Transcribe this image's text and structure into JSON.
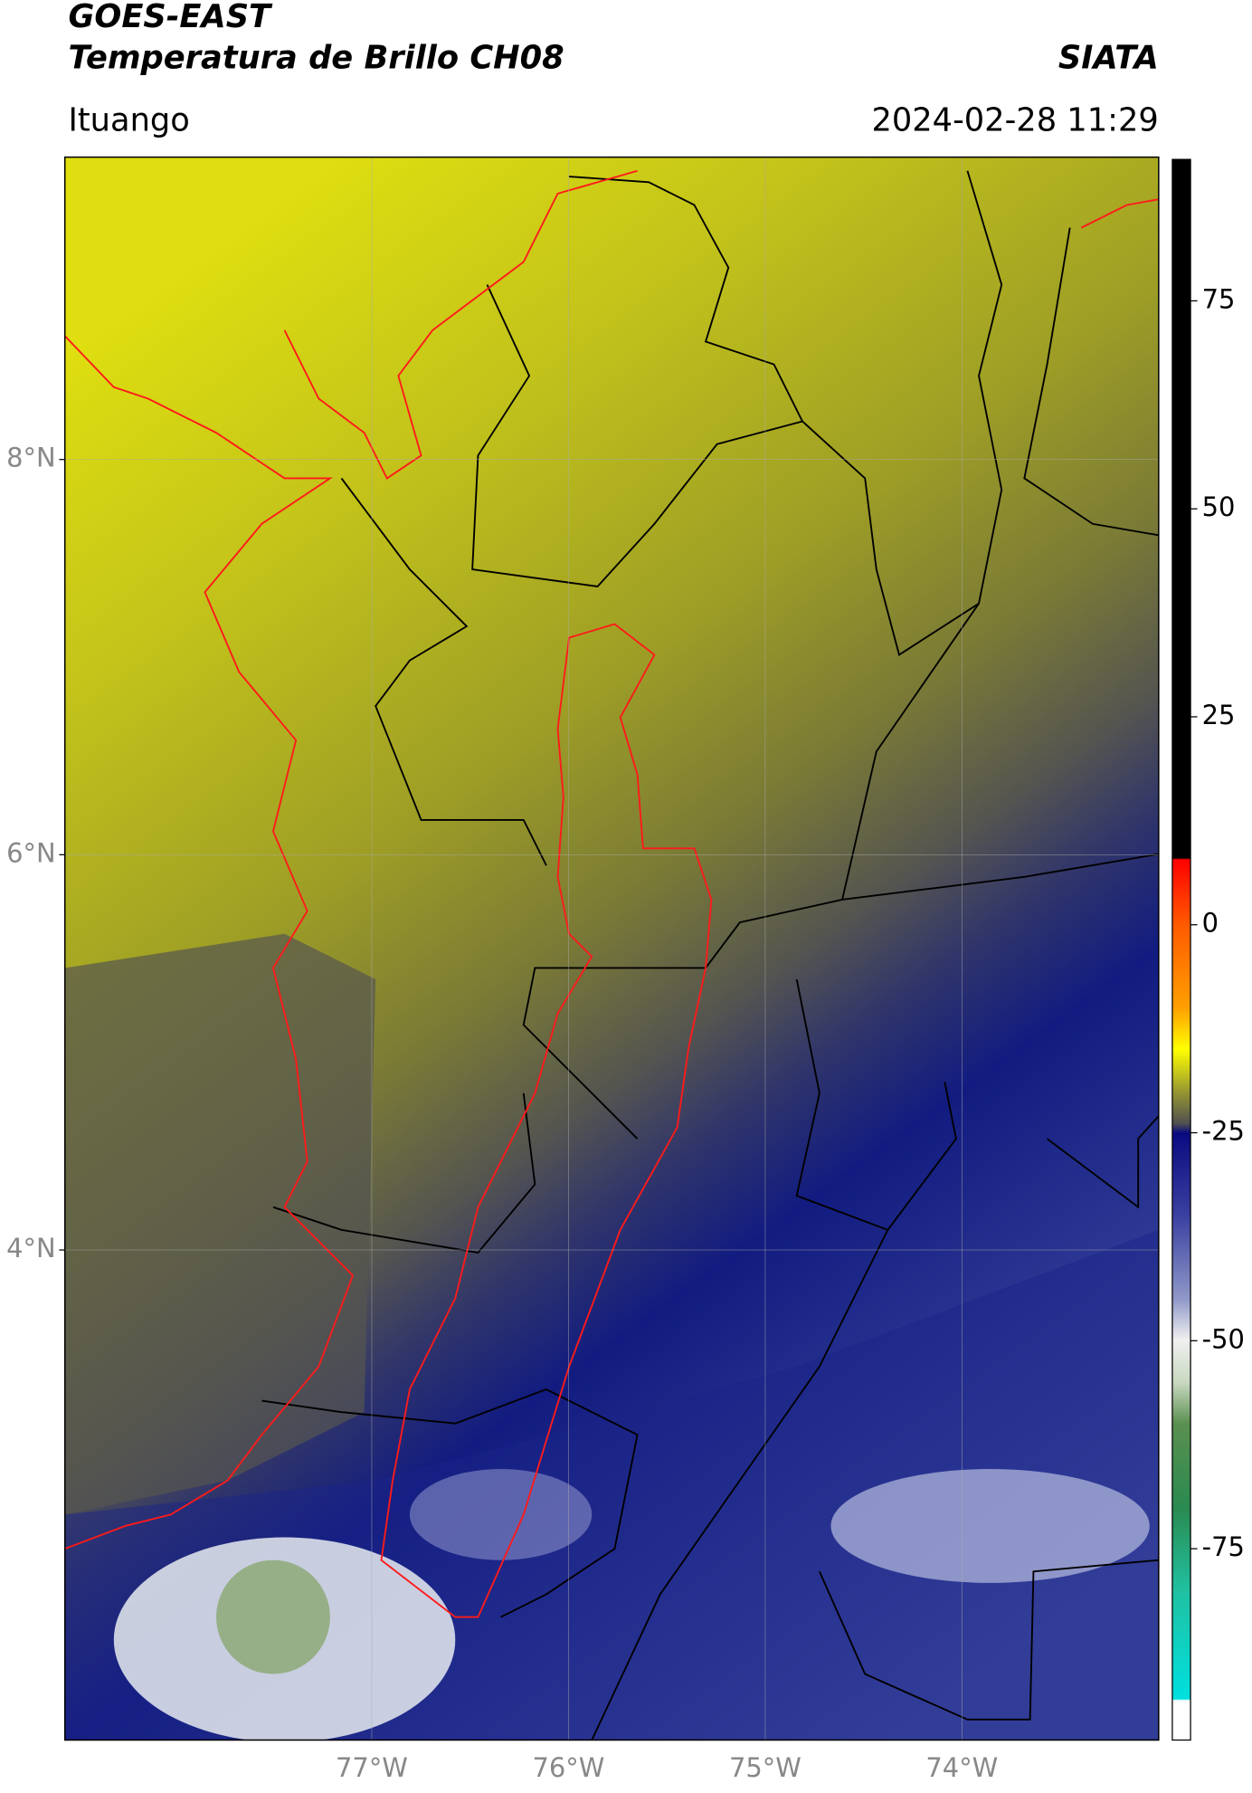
{
  "header": {
    "title": "GOES-EAST",
    "subtitle": "Temperatura de Brillo CH08",
    "org": "SIATA",
    "location": "Ituango",
    "datetime": "2024-02-28 11:29"
  },
  "map": {
    "lonlim": [
      -78.56,
      -73.0
    ],
    "latlim": [
      1.52,
      9.53
    ],
    "grid": true,
    "lon_ticks": [
      {
        "value": -77,
        "label": "77°W"
      },
      {
        "value": -76,
        "label": "76°W"
      },
      {
        "value": -75,
        "label": "75°W"
      },
      {
        "value": -74,
        "label": "74°W"
      }
    ],
    "lat_ticks": [
      {
        "value": 8,
        "label": "8°N"
      },
      {
        "value": 6,
        "label": "6°N"
      },
      {
        "value": 4,
        "label": "4°N"
      }
    ]
  },
  "colorbar": {
    "lim": [
      -98,
      92
    ],
    "ticks": [
      75,
      50,
      25,
      0,
      -25,
      -50,
      -75
    ]
  }
}
